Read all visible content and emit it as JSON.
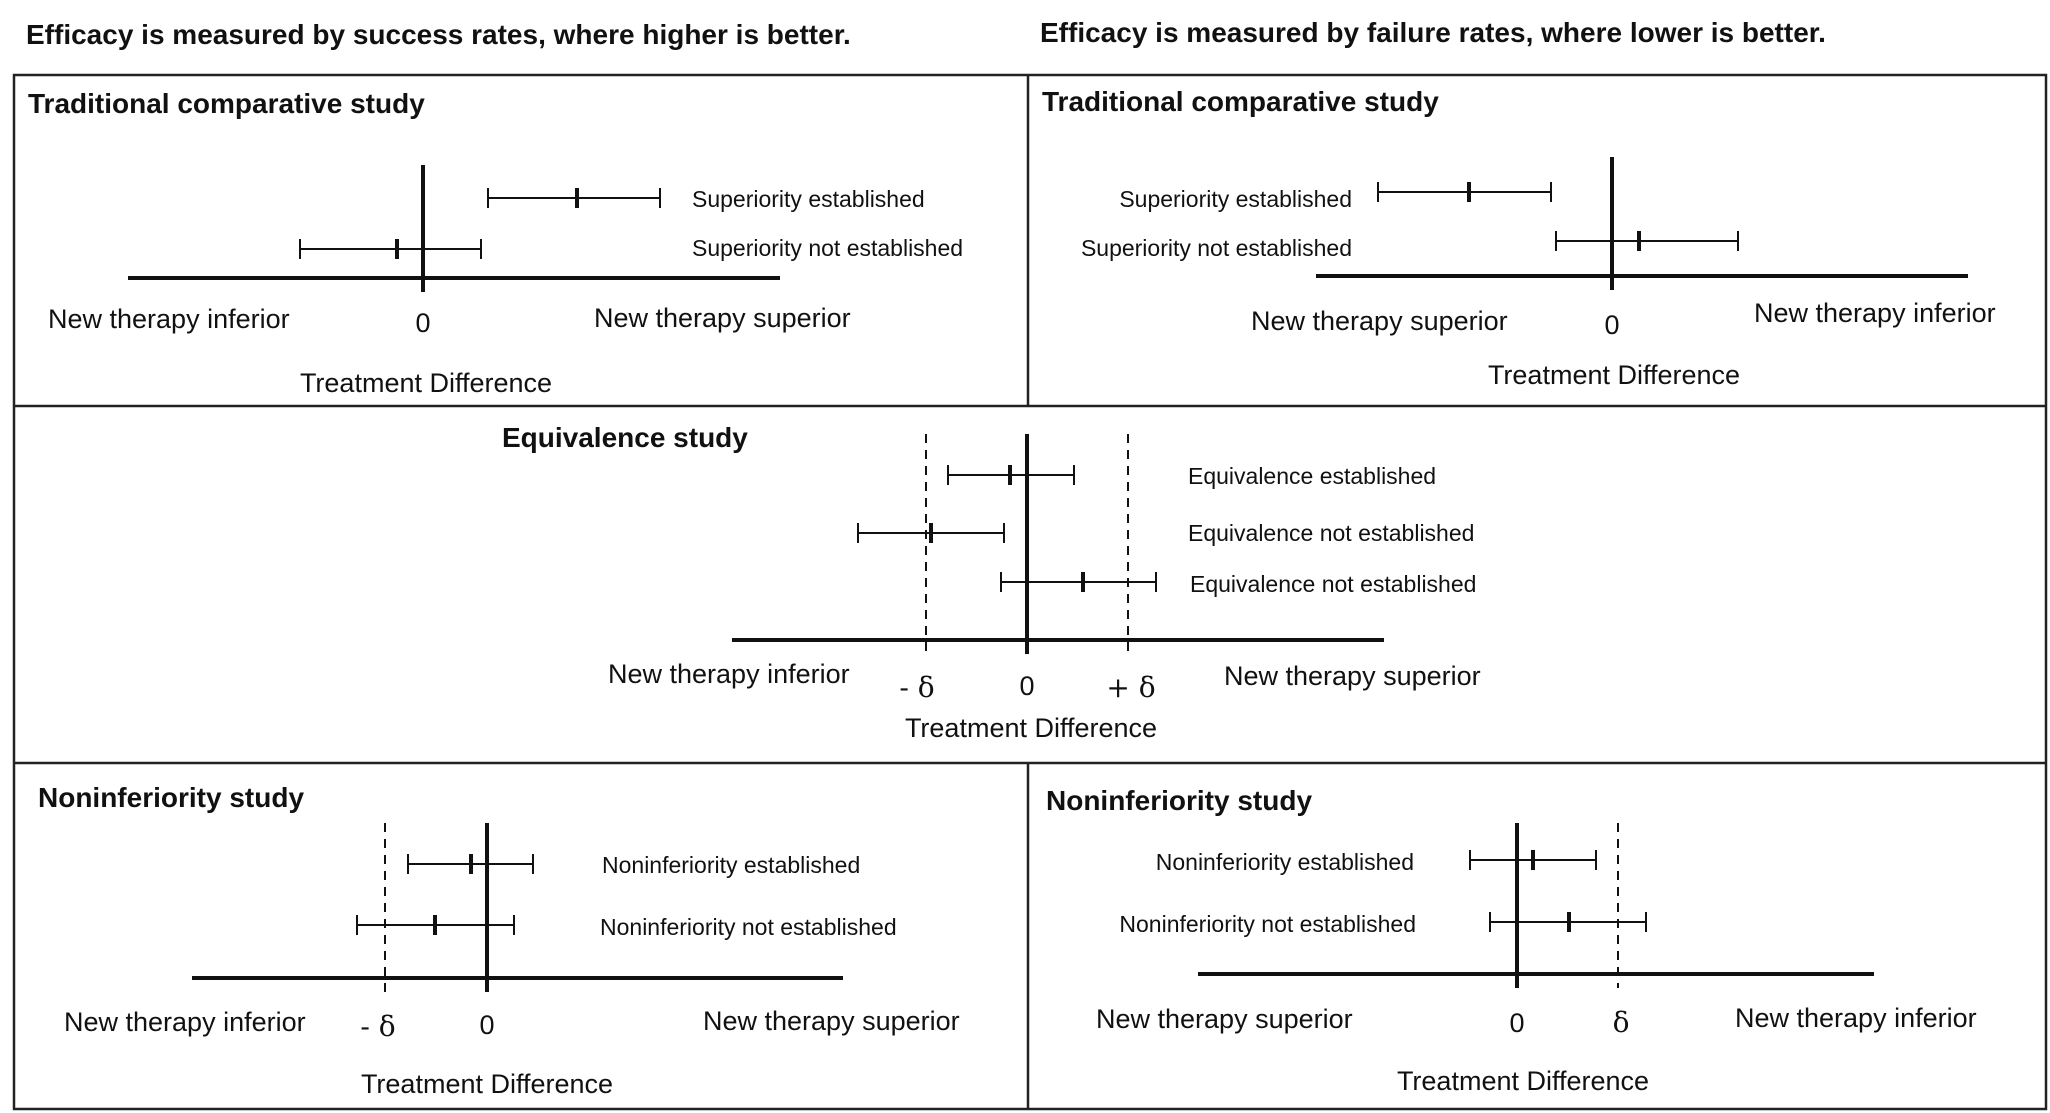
{
  "headers": {
    "left": "Efficacy is measured by success rates,  where higher is better.",
    "right": "Efficacy is measured by failure rates, where lower is better."
  },
  "panels": {
    "trad_left": {
      "title": "Traditional comparative study",
      "intervals": [
        "Superiority  established",
        "Superiority  not established"
      ],
      "axis_left": "New therapy inferior",
      "axis_right": "New therapy superior",
      "zero": "0",
      "xlabel": "Treatment Difference"
    },
    "trad_right": {
      "title": "Traditional comparative study",
      "intervals": [
        "Superiority  established",
        "Superiority  not established"
      ],
      "axis_left": "New therapy superior",
      "axis_right": "New therapy inferior",
      "zero": "0",
      "xlabel": "Treatment Difference"
    },
    "equivalence": {
      "title": "Equivalence study",
      "intervals": [
        "Equivalence established",
        "Equivalence not established",
        "Equivalence not established"
      ],
      "axis_left": "New therapy inferior",
      "axis_right": "New therapy superior",
      "zero": "0",
      "minus_delta": "- δ",
      "plus_delta": "+ δ",
      "xlabel": "Treatment Difference"
    },
    "noninf_left": {
      "title": "Noninferiority study",
      "intervals": [
        "Noninferiority established",
        "Noninferiority not established"
      ],
      "axis_left": "New therapy inferior",
      "axis_right": "New therapy superior",
      "zero": "0",
      "minus_delta": "- δ",
      "xlabel": "Treatment Difference"
    },
    "noninf_right": {
      "title": "Noninferiority study",
      "intervals": [
        "Noninferiority established",
        "Noninferiority not established"
      ],
      "axis_left": "New therapy superior",
      "axis_right": "New therapy inferior",
      "zero": "0",
      "delta": "δ",
      "xlabel": "Treatment Difference"
    }
  }
}
